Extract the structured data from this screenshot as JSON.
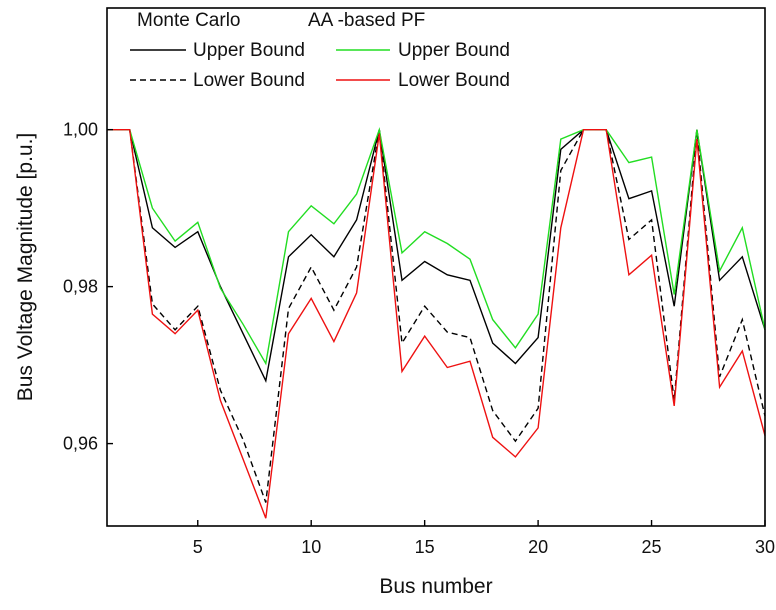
{
  "chart_data": {
    "type": "line",
    "title": "",
    "xlabel": "Bus number",
    "ylabel": "Bus Voltage Magnitude [p.u.]",
    "xlim": [
      1,
      30
    ],
    "ylim": [
      0.9495,
      1.0155
    ],
    "x_ticks": [
      5,
      10,
      15,
      20,
      25,
      30
    ],
    "x_tick_labels": [
      "5",
      "10",
      "15",
      "20",
      "25",
      "30"
    ],
    "y_ticks": [
      0.96,
      0.98,
      1.0
    ],
    "y_tick_labels": [
      "0,96",
      "0,98",
      "1,00"
    ],
    "grid": false,
    "legend_position": "top-left",
    "legend": {
      "group_titles": [
        "Monte Carlo",
        "AA -based PF"
      ],
      "entries": [
        "Upper Bound",
        "Lower Bound",
        "Upper Bound",
        "Lower Bound"
      ]
    },
    "x": [
      1,
      2,
      3,
      4,
      5,
      6,
      7,
      8,
      9,
      10,
      11,
      12,
      13,
      14,
      15,
      16,
      17,
      18,
      19,
      20,
      21,
      22,
      23,
      24,
      25,
      26,
      27,
      28,
      29,
      30
    ],
    "series": [
      {
        "name": "Upper Bound",
        "group": "Monte Carlo",
        "color": "#000000",
        "dash": "solid",
        "values": [
          1.0,
          1.0,
          0.9875,
          0.985,
          0.987,
          0.98,
          0.974,
          0.968,
          0.9838,
          0.9866,
          0.9838,
          0.9885,
          1.0,
          0.9808,
          0.9832,
          0.9815,
          0.9808,
          0.9728,
          0.9702,
          0.9735,
          0.9975,
          1.0,
          1.0,
          0.9912,
          0.9922,
          0.9775,
          1.0,
          0.9808,
          0.9838,
          0.9745
        ]
      },
      {
        "name": "Lower Bound",
        "group": "Monte Carlo",
        "color": "#000000",
        "dash": "dashed",
        "values": [
          1.0,
          1.0,
          0.9778,
          0.9745,
          0.9775,
          0.9668,
          0.9605,
          0.9525,
          0.9772,
          0.9825,
          0.977,
          0.9825,
          1.0,
          0.9728,
          0.9775,
          0.9742,
          0.9735,
          0.9642,
          0.9603,
          0.9645,
          0.9948,
          1.0,
          1.0,
          0.986,
          0.9885,
          0.9655,
          0.9998,
          0.9685,
          0.9758,
          0.9635
        ]
      },
      {
        "name": "Upper Bound",
        "group": "AA -based PF",
        "color": "#22dd22",
        "dash": "solid",
        "values": [
          1.0,
          1.0,
          0.99,
          0.9858,
          0.9882,
          0.9798,
          0.9752,
          0.9702,
          0.987,
          0.9903,
          0.988,
          0.9918,
          1.0,
          0.9843,
          0.987,
          0.9855,
          0.9835,
          0.9758,
          0.9722,
          0.9765,
          0.9988,
          1.0,
          1.0,
          0.9958,
          0.9965,
          0.979,
          1.0,
          0.982,
          0.9875,
          0.9745
        ]
      },
      {
        "name": "Lower Bound",
        "group": "AA -based PF",
        "color": "#ee1111",
        "dash": "solid",
        "values": [
          1.0,
          1.0,
          0.9765,
          0.974,
          0.977,
          0.9655,
          0.958,
          0.9505,
          0.974,
          0.9785,
          0.973,
          0.9792,
          0.9995,
          0.9692,
          0.9737,
          0.9697,
          0.9705,
          0.9608,
          0.9583,
          0.962,
          0.9875,
          1.0,
          1.0,
          0.9815,
          0.984,
          0.9648,
          0.9988,
          0.9672,
          0.9718,
          0.961
        ]
      }
    ]
  }
}
